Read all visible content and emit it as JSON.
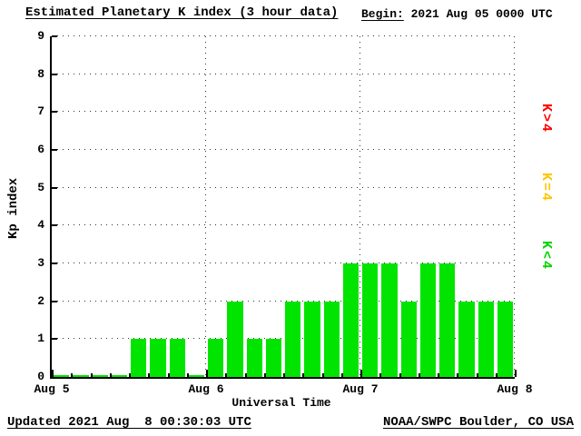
{
  "header": {
    "title": "Estimated Planetary K index (3 hour data)",
    "begin_label": "Begin:",
    "begin_value": " 2021 Aug 05 0000 UTC"
  },
  "footer": {
    "updated": "Updated 2021 Aug  8 00:30:03 UTC",
    "source": "NOAA/SWPC Boulder, CO USA"
  },
  "chart_data": {
    "type": "bar",
    "title": "Estimated Planetary K index (3 hour data)",
    "begin": "2021 Aug 05 0000 UTC",
    "xlabel": "Universal Time",
    "ylabel": "Kp index",
    "ylim": [
      0,
      9
    ],
    "y_ticks": [
      0,
      1,
      2,
      3,
      4,
      5,
      6,
      7,
      8,
      9
    ],
    "x_tick_labels": [
      "Aug 5",
      "Aug 6",
      "Aug 7",
      "Aug 8"
    ],
    "interval_hours": 3,
    "values": [
      0,
      0,
      0,
      0,
      1,
      1,
      1,
      0,
      1,
      2,
      1,
      1,
      2,
      2,
      2,
      3,
      3,
      3,
      2,
      3,
      3,
      2,
      2,
      2
    ],
    "bar_color": "#00E400",
    "grid": "dotted",
    "legend": [
      {
        "label": "K>4",
        "color": "#FF0000"
      },
      {
        "label": "K=4",
        "color": "#FFC400"
      },
      {
        "label": "K<4",
        "color": "#00D400"
      }
    ],
    "legend_position": "right"
  }
}
